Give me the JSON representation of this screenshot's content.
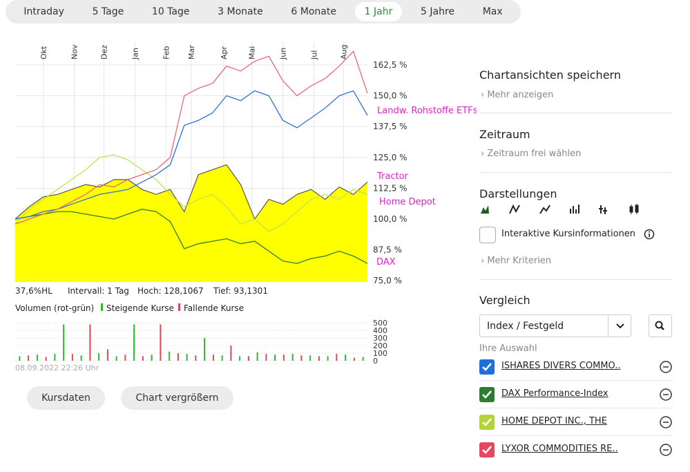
{
  "tabs": [
    "Intraday",
    "5 Tage",
    "10 Tage",
    "3 Monate",
    "6 Monate",
    "1 Jahr",
    "5 Jahre",
    "Max"
  ],
  "chart_data": {
    "type": "line",
    "xlim": [
      0,
      25
    ],
    "xticks": [
      {
        "value": 2.0,
        "label": "Okt"
      },
      {
        "value": 4.2,
        "label": "Nov"
      },
      {
        "value": 6.3,
        "label": "Dez"
      },
      {
        "value": 8.5,
        "label": "Jan"
      },
      {
        "value": 10.7,
        "label": "Feb"
      },
      {
        "value": 12.5,
        "label": "Mar"
      },
      {
        "value": 14.8,
        "label": "Apr"
      },
      {
        "value": 16.8,
        "label": "Mai"
      },
      {
        "value": 19.0,
        "label": "Jun"
      },
      {
        "value": 21.2,
        "label": "Jul"
      },
      {
        "value": 23.3,
        "label": "Aug"
      }
    ],
    "ylim": [
      74.5,
      172
    ],
    "yticks": [
      {
        "value": 75,
        "label": "75,0 %"
      },
      {
        "value": 87.5,
        "label": "87,5 %"
      },
      {
        "value": 100,
        "label": "100,0 %"
      },
      {
        "value": 112.5,
        "label": "112,5 %"
      },
      {
        "value": 125,
        "label": "125,0 %"
      },
      {
        "value": 137.5,
        "label": "137,5 %"
      },
      {
        "value": 150,
        "label": "150,0 %"
      },
      {
        "value": 162.5,
        "label": "162,5 %"
      }
    ],
    "grid": true,
    "area_series": {
      "color": "#ffff00",
      "line_color": "#555555",
      "values": [
        100,
        105,
        109,
        110,
        112,
        114,
        113,
        116,
        116,
        112,
        110,
        112,
        103,
        118,
        120,
        122,
        114,
        100,
        108,
        106,
        110,
        112,
        108,
        113,
        110,
        115
      ]
    },
    "series": [
      {
        "color": "#c5e04a",
        "values": [
          98,
          104,
          108,
          112,
          116,
          120,
          125,
          126,
          124,
          120,
          116,
          110,
          105,
          108,
          110,
          105,
          98,
          100,
          95,
          98,
          103,
          108,
          110,
          108,
          112,
          110
        ]
      },
      {
        "color": "#2e7d32",
        "values": [
          100,
          101,
          102,
          103,
          103,
          102,
          101,
          100,
          102,
          104,
          103,
          99,
          88,
          90,
          91,
          92,
          90,
          91,
          87,
          83,
          82,
          84,
          85,
          87,
          85,
          82
        ]
      },
      {
        "color": "#2f6fd6",
        "values": [
          100,
          101,
          103,
          104,
          106,
          108,
          110,
          111,
          112,
          115,
          118,
          122,
          138,
          140,
          143,
          150,
          148,
          152,
          150,
          140,
          137,
          141,
          145,
          150,
          152,
          142
        ]
      },
      {
        "color": "#e8667a",
        "values": [
          98,
          100,
          102,
          104,
          107,
          110,
          114,
          113,
          116,
          118,
          120,
          125,
          150,
          153,
          155,
          162,
          160,
          164,
          166,
          156,
          150,
          154,
          157,
          162,
          168,
          151
        ]
      }
    ],
    "annotations": [
      "Landw. Rohstoffe ETFs",
      "Tractor",
      "Home Depot",
      "DAX"
    ],
    "stats": [
      "37,6%HL",
      "Intervall: 1 Tag",
      "Hoch: 128,1067",
      "Tief: 93,1301"
    ]
  },
  "volume_chart": {
    "type": "bar",
    "title": "Volumen (rot-grün)",
    "ylim": [
      0,
      520
    ],
    "yticks": [
      0,
      100,
      200,
      300,
      400,
      500
    ],
    "series": [
      {
        "name": "Steigende Kurse",
        "color": "#2eb82e",
        "values": [
          60,
          null,
          80,
          null,
          90,
          480,
          null,
          70,
          null,
          100,
          null,
          60,
          null,
          480,
          null,
          80,
          null,
          120,
          null,
          90,
          null,
          300,
          null,
          70,
          null,
          60,
          null,
          110,
          null,
          80,
          null,
          90,
          null,
          70,
          null,
          60,
          null,
          80,
          null,
          50
        ]
      },
      {
        "name": "Fallende Kurse",
        "color": "#e0455a",
        "values": [
          null,
          70,
          null,
          50,
          null,
          null,
          90,
          null,
          480,
          null,
          150,
          null,
          80,
          null,
          60,
          null,
          480,
          null,
          100,
          null,
          70,
          null,
          80,
          null,
          200,
          null,
          60,
          null,
          90,
          null,
          80,
          null,
          70,
          null,
          60,
          null,
          90,
          null,
          40,
          null
        ]
      }
    ],
    "timestamp": "08.09.2022 22:26 Uhr"
  },
  "buttons": [
    "Kursdaten",
    "Chart vergrößern"
  ],
  "panel": {
    "save": {
      "title": "Chartansichten speichern",
      "link": "Mehr anzeigen"
    },
    "period": {
      "title": "Zeitraum",
      "link": "Zeitraum frei wählen"
    },
    "views": {
      "title": "Darstellungen",
      "checkbox": "Interaktive Kursinformationen",
      "link": "Mehr Kriterien"
    },
    "compare": {
      "title": "Vergleich",
      "select": "Index / Festgeld",
      "selection_label": "Ihre Auswahl",
      "items": [
        {
          "label": "ISHARES DIVERS COMMO..",
          "color": "#1e6fd9"
        },
        {
          "label": "DAX Performance-Index",
          "color": "#2e7d32"
        },
        {
          "label": "HOME DEPOT INC., THE",
          "color": "#b5d334"
        },
        {
          "label": "LYXOR COMMODITIES RE..",
          "color": "#e8475f"
        }
      ]
    }
  }
}
